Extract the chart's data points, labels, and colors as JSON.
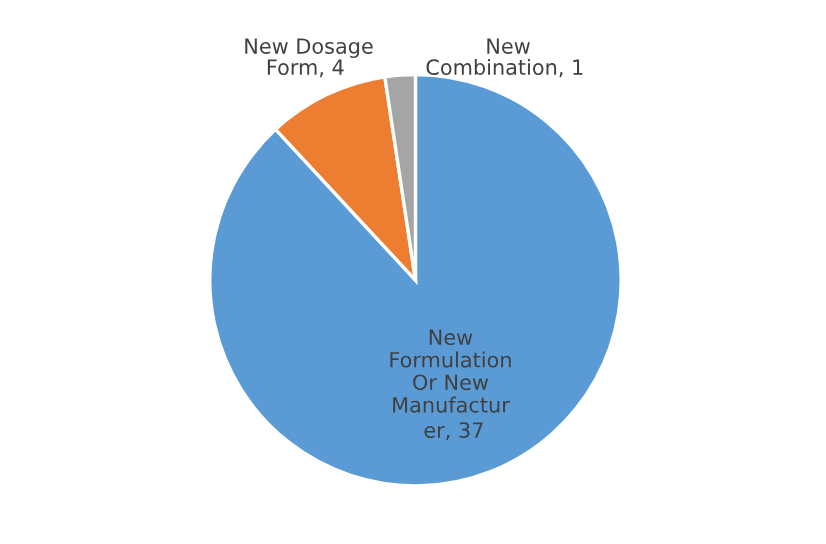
{
  "chart_data": {
    "type": "pie",
    "categories": [
      "New\nFormulation\nOr New\nManufactur\ner",
      "New Dosage\nForm",
      "New\nCombination"
    ],
    "values": [
      37,
      4,
      1
    ],
    "colors": [
      "#5b9bd5",
      "#ed7d31",
      "#a5a5a5"
    ],
    "value_labels": [
      ", 37",
      ", 4",
      ", 1"
    ]
  }
}
